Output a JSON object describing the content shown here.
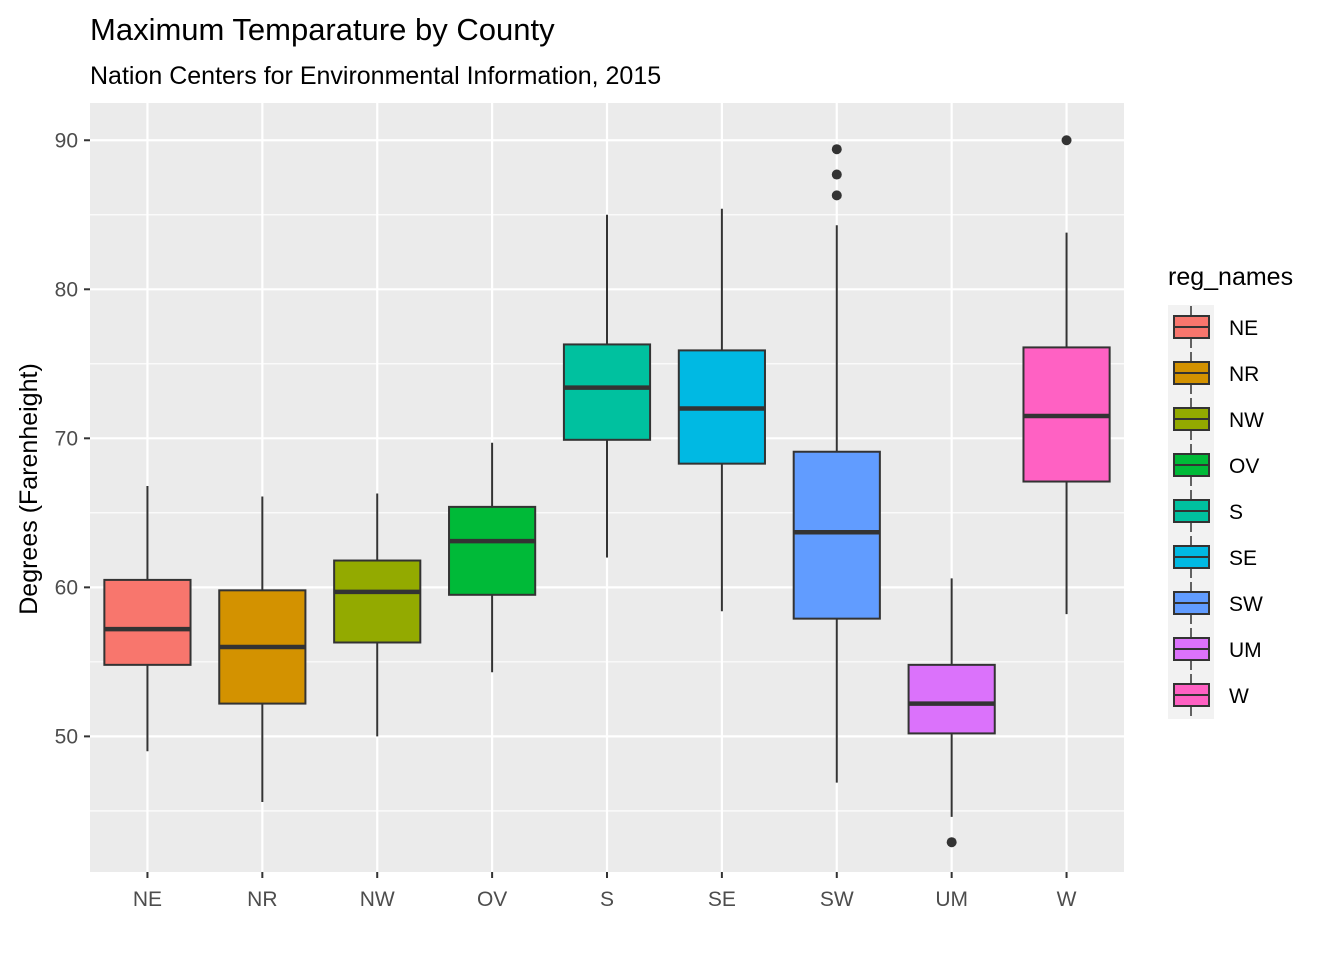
{
  "chart_data": {
    "type": "boxplot",
    "title": "Maximum Temparature by County",
    "subtitle": "Nation Centers for Environmental Information, 2015",
    "xlabel": "",
    "ylabel": "Degrees (Farenheight)",
    "ylim": [
      40.9,
      92.5
    ],
    "y_ticks": [
      50,
      60,
      70,
      80,
      90
    ],
    "y_minor_ticks": [
      45,
      55,
      65,
      75,
      85
    ],
    "grid": true,
    "legend": {
      "title": "reg_names",
      "placement": "right"
    },
    "categories": [
      "NE",
      "NR",
      "NW",
      "OV",
      "S",
      "SE",
      "SW",
      "UM",
      "W"
    ],
    "series": [
      {
        "name": "NE",
        "color": "#F8766D",
        "whisker_low": 49.0,
        "q1": 54.8,
        "median": 57.2,
        "q3": 60.5,
        "whisker_high": 66.8,
        "outliers": []
      },
      {
        "name": "NR",
        "color": "#D39200",
        "whisker_low": 45.6,
        "q1": 52.2,
        "median": 56.0,
        "q3": 59.8,
        "whisker_high": 66.1,
        "outliers": []
      },
      {
        "name": "NW",
        "color": "#93AA00",
        "whisker_low": 50.0,
        "q1": 56.3,
        "median": 59.7,
        "q3": 61.8,
        "whisker_high": 66.3,
        "outliers": []
      },
      {
        "name": "OV",
        "color": "#00BA38",
        "whisker_low": 54.3,
        "q1": 59.5,
        "median": 63.1,
        "q3": 65.4,
        "whisker_high": 69.7,
        "outliers": []
      },
      {
        "name": "S",
        "color": "#00C19F",
        "whisker_low": 62.0,
        "q1": 69.9,
        "median": 73.4,
        "q3": 76.3,
        "whisker_high": 85.0,
        "outliers": []
      },
      {
        "name": "SE",
        "color": "#00B9E3",
        "whisker_low": 58.4,
        "q1": 68.3,
        "median": 72.0,
        "q3": 75.9,
        "whisker_high": 85.4,
        "outliers": []
      },
      {
        "name": "SW",
        "color": "#619CFF",
        "whisker_low": 46.9,
        "q1": 57.9,
        "median": 63.7,
        "q3": 69.1,
        "whisker_high": 84.3,
        "outliers": [
          86.3,
          87.7,
          89.4
        ]
      },
      {
        "name": "UM",
        "color": "#DB72FB",
        "whisker_low": 44.6,
        "q1": 50.2,
        "median": 52.2,
        "q3": 54.8,
        "whisker_high": 60.6,
        "outliers": [
          42.9
        ]
      },
      {
        "name": "W",
        "color": "#FF61C3",
        "whisker_low": 58.2,
        "q1": 67.1,
        "median": 71.5,
        "q3": 76.1,
        "whisker_high": 83.8,
        "outliers": [
          90.0
        ]
      }
    ]
  }
}
